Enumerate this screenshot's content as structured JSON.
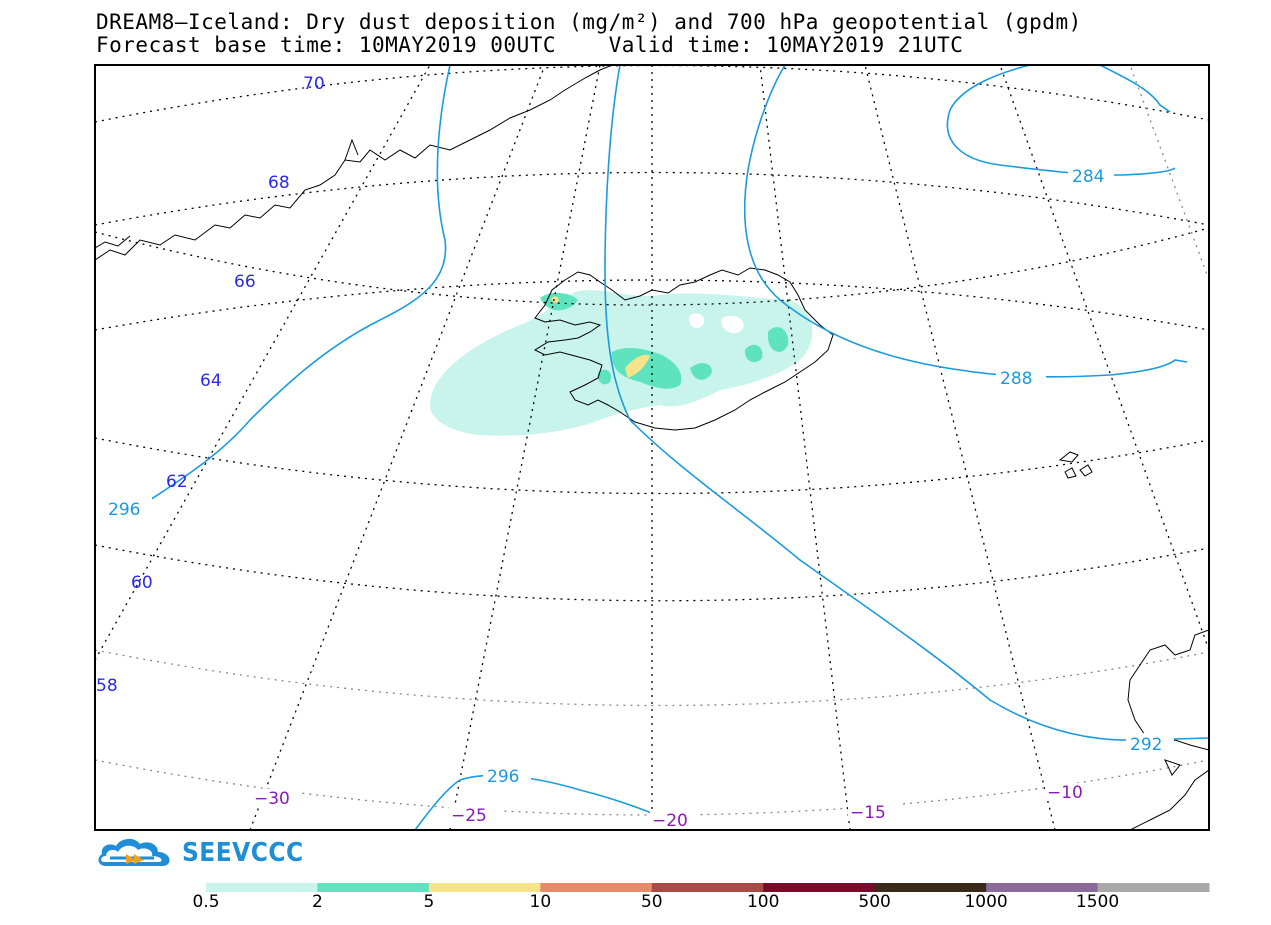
{
  "title": {
    "line1": "DREAM8—Iceland: Dry dust deposition (mg/m²) and 700 hPa geopotential (gpdm)",
    "line2": "Forecast base time: 10MAY2019 00UTC    Valid time: 10MAY2019 21UTC"
  },
  "logo": {
    "text": "SEEVCCC",
    "icon": "cloud-arrow-icon"
  },
  "colorbar": {
    "levels": [
      "0.5",
      "2",
      "5",
      "10",
      "50",
      "100",
      "500",
      "1000",
      "1500"
    ],
    "colors": [
      "#c8f4ec",
      "#5fe3bf",
      "#f7e48a",
      "#e88a6a",
      "#a94a48",
      "#7a0a2a",
      "#3a2a1a",
      "#8a6a9a",
      "#a8a8a8"
    ]
  },
  "latitude_labels": [
    "70",
    "68",
    "66",
    "64",
    "62",
    "60",
    "58"
  ],
  "longitude_labels": [
    "−30",
    "−25",
    "−20",
    "−15",
    "−10"
  ],
  "contour_labels": [
    "284",
    "288",
    "292",
    "296",
    "296"
  ],
  "colors": {
    "contour": "#1a9be0",
    "lat_label": "#2a2aee",
    "lon_label": "#8a1ab8",
    "graticule": "#000000"
  }
}
